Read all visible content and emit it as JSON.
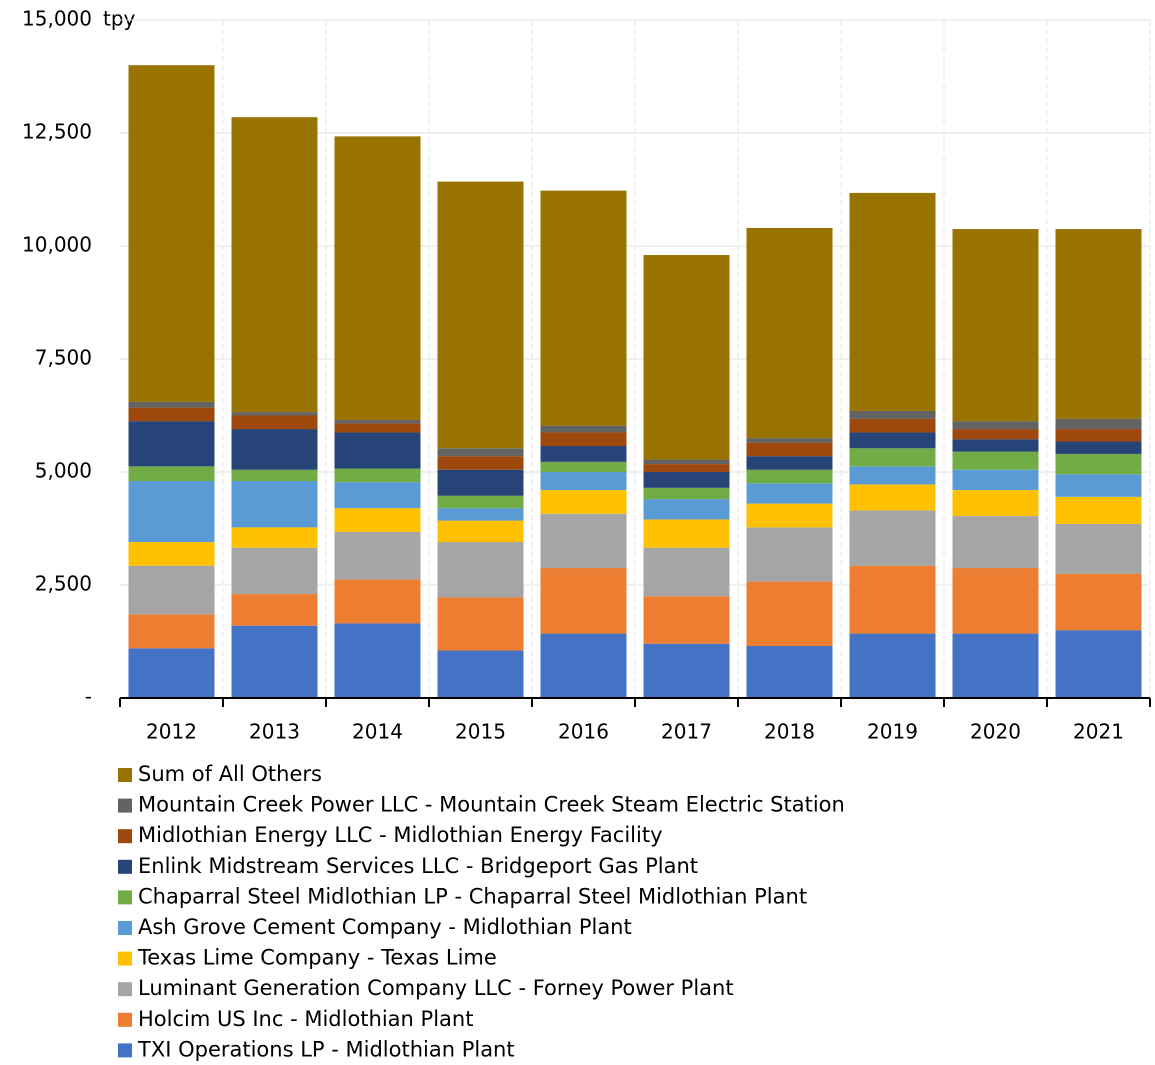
{
  "chart_data": {
    "type": "stacked_bar",
    "y_unit": "tpy",
    "categories": [
      "2012",
      "2013",
      "2014",
      "2015",
      "2016",
      "2017",
      "2018",
      "2019",
      "2020",
      "2021"
    ],
    "series": [
      {
        "name": "TXI Operations LP - Midlothian Plant",
        "color": "#4472c4",
        "values": [
          1100,
          1600,
          1650,
          1050,
          1425,
          1200,
          1150,
          1425,
          1425,
          1500
        ]
      },
      {
        "name": "Holcim US Inc - Midlothian Plant",
        "color": "#ed7d31",
        "values": [
          750,
          700,
          975,
          1175,
          1450,
          1050,
          1425,
          1500,
          1450,
          1250
        ]
      },
      {
        "name": "Luminant Generation Company LLC - Forney Power Plant",
        "color": "#a5a5a5",
        "values": [
          1075,
          1025,
          1050,
          1225,
          1200,
          1075,
          1200,
          1225,
          1150,
          1100
        ]
      },
      {
        "name": "Texas Lime Company - Texas Lime",
        "color": "#ffc000",
        "values": [
          525,
          450,
          525,
          475,
          525,
          625,
          525,
          575,
          575,
          600
        ]
      },
      {
        "name": "Ash Grove Cement Company - Midlothian Plant",
        "color": "#5b9bd5",
        "values": [
          1350,
          1025,
          575,
          275,
          400,
          450,
          450,
          400,
          450,
          500
        ]
      },
      {
        "name": "Chaparral Steel Midlothian LP - Chaparral Steel Midlothian Plant",
        "color": "#70ad47",
        "values": [
          325,
          250,
          300,
          275,
          225,
          250,
          300,
          400,
          400,
          450
        ]
      },
      {
        "name": "Enlink Midstream Services LLC - Bridgeport Gas Plant",
        "color": "#264478",
        "values": [
          1000,
          900,
          800,
          575,
          350,
          350,
          300,
          350,
          275,
          275
        ]
      },
      {
        "name": "Midlothian Energy LLC - Midlothian Energy Facility",
        "color": "#9e480e",
        "values": [
          300,
          300,
          200,
          300,
          300,
          175,
          300,
          300,
          225,
          275
        ]
      },
      {
        "name": "Mountain Creek Power LLC - Mountain Creek Steam Electric Station",
        "color": "#636363",
        "values": [
          125,
          75,
          75,
          175,
          150,
          100,
          100,
          175,
          175,
          225
        ]
      },
      {
        "name": "Sum of All Others",
        "color": "#997300",
        "values": [
          7450,
          6525,
          6275,
          5900,
          5200,
          4525,
          4650,
          4825,
          4250,
          4200
        ]
      }
    ],
    "ylim": [
      0,
      15000
    ],
    "yticks": [
      {
        "value": 0,
        "label": "-"
      },
      {
        "value": 2500,
        "label": "2,500"
      },
      {
        "value": 5000,
        "label": "5,000"
      },
      {
        "value": 7500,
        "label": "7,500"
      },
      {
        "value": 10000,
        "label": "10,000"
      },
      {
        "value": 12500,
        "label": "12,500"
      },
      {
        "value": 15000,
        "label": "15,000"
      }
    ],
    "grid": true
  }
}
